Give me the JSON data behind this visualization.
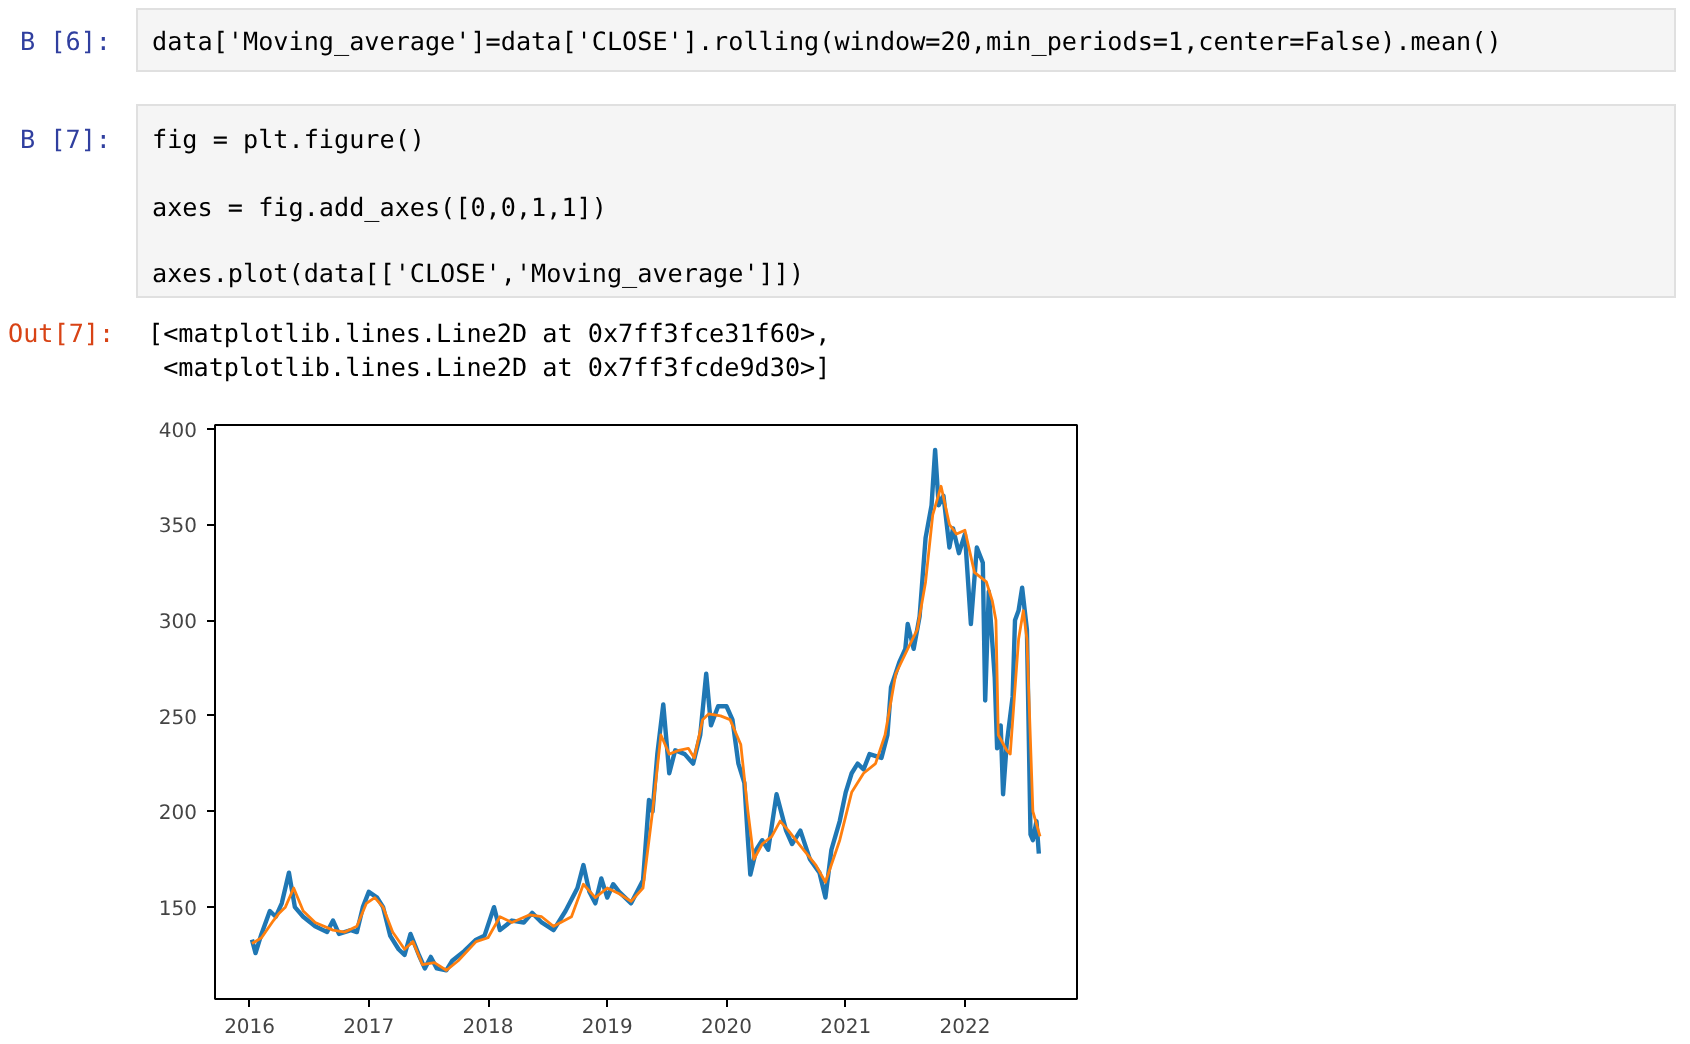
{
  "chart_data": {
    "type": "line",
    "annotations": [
      "B [6]:",
      "data['Moving_average']=data['CLOSE'].rolling(window=20,min_periods=1,center=False).mean()",
      "B [7]:",
      "fig = plt.figure()",
      "axes = fig.add_axes([0,0,1,1])",
      "axes.plot(data[['CLOSE','Moving_average']])",
      "Out[7]:",
      "[<matplotlib.lines.Line2D at 0x7ff3fce31f60>,",
      " <matplotlib.lines.Line2D at 0x7ff3fcde9d30>]"
    ],
    "xlim": [
      2015.71,
      2022.94
    ],
    "ylim": [
      102,
      402
    ],
    "xticks": [
      2016,
      2017,
      2018,
      2019,
      2020,
      2021,
      2022
    ],
    "yticks": [
      150,
      200,
      250,
      300,
      350,
      400
    ],
    "grid": false,
    "line_style": "solid",
    "marker": "none",
    "series": [
      {
        "color": "#1f77b4",
        "x": [
          2016.02,
          2016.05,
          2016.1,
          2016.17,
          2016.22,
          2016.27,
          2016.33,
          2016.38,
          2016.45,
          2016.55,
          2016.65,
          2016.7,
          2016.75,
          2016.85,
          2016.9,
          2016.95,
          2017.0,
          2017.07,
          2017.12,
          2017.18,
          2017.25,
          2017.3,
          2017.35,
          2017.42,
          2017.47,
          2017.52,
          2017.57,
          2017.65,
          2017.7,
          2017.8,
          2017.9,
          2017.97,
          2018.05,
          2018.1,
          2018.2,
          2018.3,
          2018.37,
          2018.45,
          2018.55,
          2018.65,
          2018.75,
          2018.8,
          2018.85,
          2018.9,
          2018.95,
          2019.0,
          2019.05,
          2019.1,
          2019.2,
          2019.25,
          2019.3,
          2019.35,
          2019.38,
          2019.42,
          2019.47,
          2019.52,
          2019.57,
          2019.65,
          2019.72,
          2019.78,
          2019.83,
          2019.87,
          2019.93,
          2020.0,
          2020.05,
          2020.1,
          2020.15,
          2020.18,
          2020.2,
          2020.25,
          2020.3,
          2020.35,
          2020.42,
          2020.5,
          2020.55,
          2020.62,
          2020.7,
          2020.78,
          2020.83,
          2020.88,
          2020.95,
          2021.0,
          2021.05,
          2021.1,
          2021.15,
          2021.2,
          2021.3,
          2021.35,
          2021.38,
          2021.45,
          2021.5,
          2021.52,
          2021.57,
          2021.62,
          2021.67,
          2021.72,
          2021.75,
          2021.78,
          2021.82,
          2021.87,
          2021.9,
          2021.95,
          2022.0,
          2022.05,
          2022.1,
          2022.15,
          2022.17,
          2022.2,
          2022.25,
          2022.27,
          2022.3,
          2022.32,
          2022.35,
          2022.4,
          2022.42,
          2022.45,
          2022.48,
          2022.52,
          2022.55,
          2022.57,
          2022.6,
          2022.62
        ],
        "values": [
          133,
          126,
          136,
          148,
          145,
          152,
          168,
          150,
          145,
          140,
          137,
          143,
          136,
          138,
          137,
          150,
          158,
          155,
          150,
          135,
          128,
          125,
          136,
          125,
          118,
          124,
          118,
          117,
          122,
          127,
          133,
          135,
          150,
          138,
          143,
          142,
          147,
          142,
          138,
          148,
          160,
          172,
          158,
          152,
          165,
          155,
          162,
          158,
          152,
          158,
          164,
          206,
          200,
          230,
          256,
          220,
          232,
          230,
          225,
          240,
          272,
          245,
          255,
          255,
          248,
          225,
          215,
          185,
          167,
          180,
          185,
          180,
          209,
          190,
          183,
          190,
          175,
          168,
          155,
          180,
          195,
          210,
          220,
          225,
          222,
          230,
          228,
          240,
          265,
          278,
          285,
          298,
          285,
          302,
          343,
          360,
          389,
          360,
          365,
          338,
          348,
          335,
          345,
          298,
          338,
          330,
          258,
          315,
          270,
          233,
          245,
          209,
          235,
          260,
          300,
          305,
          317,
          295,
          188,
          185,
          195,
          178
        ]
      },
      {
        "color": "#ff7f0e",
        "x": [
          2016.02,
          2016.1,
          2016.2,
          2016.25,
          2016.3,
          2016.37,
          2016.45,
          2016.55,
          2016.7,
          2016.8,
          2016.9,
          2016.98,
          2017.05,
          2017.12,
          2017.2,
          2017.3,
          2017.37,
          2017.45,
          2017.55,
          2017.65,
          2017.75,
          2017.9,
          2018.0,
          2018.1,
          2018.2,
          2018.35,
          2018.45,
          2018.55,
          2018.7,
          2018.8,
          2018.9,
          2019.0,
          2019.1,
          2019.2,
          2019.3,
          2019.38,
          2019.45,
          2019.52,
          2019.6,
          2019.68,
          2019.73,
          2019.8,
          2019.85,
          2019.95,
          2020.03,
          2020.12,
          2020.18,
          2020.23,
          2020.3,
          2020.38,
          2020.45,
          2020.52,
          2020.62,
          2020.75,
          2020.83,
          2020.95,
          2021.05,
          2021.15,
          2021.25,
          2021.33,
          2021.42,
          2021.52,
          2021.6,
          2021.67,
          2021.73,
          2021.8,
          2021.87,
          2021.93,
          2022.0,
          2022.08,
          2022.18,
          2022.23,
          2022.26,
          2022.28,
          2022.35,
          2022.38,
          2022.45,
          2022.49,
          2022.52,
          2022.57,
          2022.63
        ],
        "values": [
          131,
          134,
          143,
          147,
          150,
          160,
          148,
          142,
          138,
          137,
          140,
          152,
          155,
          150,
          137,
          128,
          132,
          120,
          121,
          117,
          122,
          132,
          134,
          145,
          142,
          146,
          145,
          140,
          145,
          162,
          155,
          160,
          157,
          153,
          160,
          200,
          240,
          230,
          232,
          233,
          228,
          248,
          251,
          250,
          248,
          235,
          200,
          175,
          183,
          187,
          195,
          190,
          182,
          172,
          163,
          185,
          210,
          220,
          225,
          240,
          272,
          285,
          295,
          320,
          355,
          370,
          350,
          345,
          347,
          325,
          320,
          310,
          300,
          240,
          232,
          230,
          290,
          305,
          290,
          200,
          187
        ]
      }
    ]
  }
}
